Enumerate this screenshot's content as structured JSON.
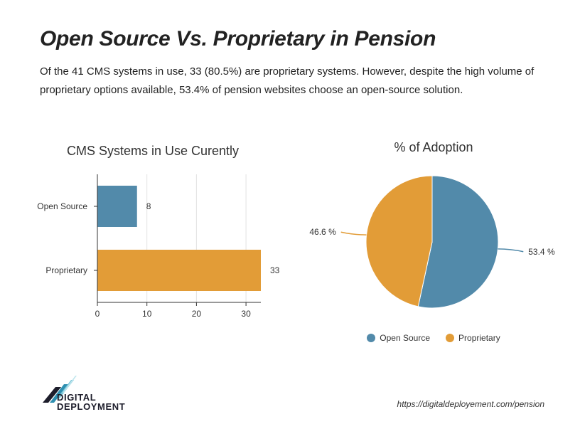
{
  "page": {
    "title": "Open Source Vs. Proprietary in Pension",
    "subtitle": "Of the 41 CMS systems in use, 33 (80.5%) are proprietary systems. However, despite the high volume of proprietary options available, 53.4% of pension websites choose an open-source solution.",
    "logo_line1": "DIGITAL",
    "logo_line2": "DEPLOYMENT",
    "url": "https://digitaldeployement.com/pension"
  },
  "colors": {
    "open_source": "#528aaa",
    "proprietary": "#e29c37"
  },
  "chart_data": [
    {
      "type": "bar",
      "orientation": "horizontal",
      "title": "CMS Systems in Use Curently",
      "categories": [
        "Open Source",
        "Proprietary"
      ],
      "values": [
        8,
        33
      ],
      "value_labels": [
        "8",
        "33"
      ],
      "xlim": [
        0,
        33
      ],
      "xticks": [
        "0",
        "10",
        "20",
        "30"
      ],
      "grid": true
    },
    {
      "type": "pie",
      "title": "% of Adoption",
      "slices": [
        {
          "label": "Open Source",
          "value": 53.4,
          "text": "53.4 %"
        },
        {
          "label": "Proprietary",
          "value": 46.6,
          "text": "46.6 %"
        }
      ],
      "legend": {
        "placement": "bottom",
        "items": [
          "Open Source",
          "Proprietary"
        ]
      }
    }
  ]
}
